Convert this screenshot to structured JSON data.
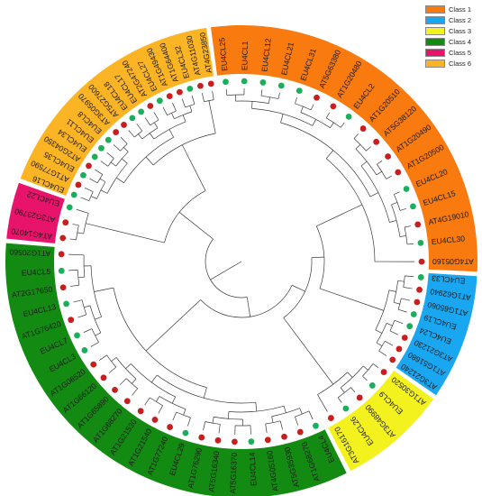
{
  "legend": [
    {
      "label": "Class 1",
      "color": "#F97A0F"
    },
    {
      "label": "Class 2",
      "color": "#18A7F0"
    },
    {
      "label": "Class 3",
      "color": "#F4F21E"
    },
    {
      "label": "Class 4",
      "color": "#138A12"
    },
    {
      "label": "Class 5",
      "color": "#E8136A"
    },
    {
      "label": "Class 6",
      "color": "#FBB424"
    }
  ],
  "marker_colors": {
    "green": "#1BAF5C",
    "red": "#C81E1E"
  },
  "clades": [
    {
      "class": "Class 1",
      "color": "#F97A0F",
      "leaves": [
        {
          "label": "EU4CL25",
          "marker": "green"
        },
        {
          "label": "EU4CL1",
          "marker": "green"
        },
        {
          "label": "EU4CL12",
          "marker": "green"
        },
        {
          "label": "EU4CL21",
          "marker": "green"
        },
        {
          "label": "EU4CL31",
          "marker": "green"
        },
        {
          "label": "AT5G63380",
          "marker": "red"
        },
        {
          "label": "AT1G20480",
          "marker": "red"
        },
        {
          "label": "EU4CL2",
          "marker": "green"
        },
        {
          "label": "AT1G20510",
          "marker": "red"
        },
        {
          "label": "AT5G38120",
          "marker": "red"
        },
        {
          "label": "AT1G20490",
          "marker": "red"
        },
        {
          "label": "AT1G20500",
          "marker": "red"
        },
        {
          "label": "EU4CL20",
          "marker": "green"
        },
        {
          "label": "EU4CL15",
          "marker": "green"
        },
        {
          "label": "AT4G19010",
          "marker": "red"
        },
        {
          "label": "EU4CL30",
          "marker": "green"
        },
        {
          "label": "AT4G05160",
          "marker": "red"
        }
      ]
    },
    {
      "class": "Class 2",
      "color": "#18A7F0",
      "leaves": [
        {
          "label": "EU4CL33",
          "marker": "green"
        },
        {
          "label": "AT1G62940",
          "marker": "red"
        },
        {
          "label": "AT1G65060",
          "marker": "red"
        },
        {
          "label": "EU4CL19",
          "marker": "green"
        },
        {
          "label": "EU4CL24",
          "marker": "green"
        },
        {
          "label": "AT3G21230",
          "marker": "red"
        },
        {
          "label": "AT1G51680",
          "marker": "red"
        },
        {
          "label": "AT3G21240",
          "marker": "red"
        }
      ]
    },
    {
      "class": "Class 3",
      "color": "#F4F21E",
      "leaves": [
        {
          "label": "AT1G30520",
          "marker": "red"
        },
        {
          "label": "EU4CL9",
          "marker": "green"
        },
        {
          "label": "AT3G48990",
          "marker": "red"
        },
        {
          "label": "EU4CL26",
          "marker": "green"
        },
        {
          "label": "AT3G16170",
          "marker": "red"
        }
      ]
    },
    {
      "class": "Class 4",
      "color": "#138A12",
      "leaves": [
        {
          "label": "EU4CL4",
          "marker": "green"
        },
        {
          "label": "AT1G68270",
          "marker": "red"
        },
        {
          "label": "AT5G35930",
          "marker": "red"
        },
        {
          "label": "AT4G05160",
          "marker": "red"
        },
        {
          "label": "EU4CL14",
          "marker": "green"
        },
        {
          "label": "AT5G16370",
          "marker": "red"
        },
        {
          "label": "AT5G16340",
          "marker": "red"
        },
        {
          "label": "AT1G76290",
          "marker": "red"
        },
        {
          "label": "EU4CL29",
          "marker": "green"
        },
        {
          "label": "AT1G77240",
          "marker": "red"
        },
        {
          "label": "AT1G21540",
          "marker": "red"
        },
        {
          "label": "AT1G21530",
          "marker": "red"
        },
        {
          "label": "AT1G68270",
          "marker": "red"
        },
        {
          "label": "AT1G65890",
          "marker": "red"
        },
        {
          "label": "AT1G66120",
          "marker": "red"
        },
        {
          "label": "AT1G06520",
          "marker": "red"
        },
        {
          "label": "EU4CL3",
          "marker": "green"
        },
        {
          "label": "EU4CL7",
          "marker": "green"
        },
        {
          "label": "AT1G76420",
          "marker": "red"
        },
        {
          "label": "EU4CL13",
          "marker": "green"
        },
        {
          "label": "AT2G17650",
          "marker": "red"
        },
        {
          "label": "EU4CL5",
          "marker": "green"
        },
        {
          "label": "AT1G20560",
          "marker": "red"
        }
      ]
    },
    {
      "class": "Class 5",
      "color": "#E8136A",
      "leaves": [
        {
          "label": "AT4G14070",
          "marker": "red"
        },
        {
          "label": "AT3G23790",
          "marker": "red"
        },
        {
          "label": "EU4CL22",
          "marker": "green"
        }
      ]
    },
    {
      "class": "Class 6",
      "color": "#FBB424",
      "leaves": [
        {
          "label": "EU4CL16",
          "marker": "green"
        },
        {
          "label": "AT1G77590",
          "marker": "red"
        },
        {
          "label": "EU4CL35",
          "marker": "green"
        },
        {
          "label": "AT2G04350",
          "marker": "red"
        },
        {
          "label": "EU4CL34",
          "marker": "green"
        },
        {
          "label": "EU4CL11",
          "marker": "green"
        },
        {
          "label": "EU4CL8",
          "marker": "green"
        },
        {
          "label": "AT3G05970",
          "marker": "red"
        },
        {
          "label": "AT5G27600",
          "marker": "red"
        },
        {
          "label": "EU4CL18",
          "marker": "green"
        },
        {
          "label": "EU4CL17",
          "marker": "green"
        },
        {
          "label": "AT2G47240",
          "marker": "red"
        },
        {
          "label": "EU4CL27",
          "marker": "green"
        },
        {
          "label": "AT1G49430",
          "marker": "red"
        },
        {
          "label": "AT1G64400",
          "marker": "red"
        },
        {
          "label": "EU4CL32",
          "marker": "green"
        },
        {
          "label": "AT4G11030",
          "marker": "red"
        },
        {
          "label": "AT4G23850",
          "marker": "red"
        }
      ]
    }
  ]
}
